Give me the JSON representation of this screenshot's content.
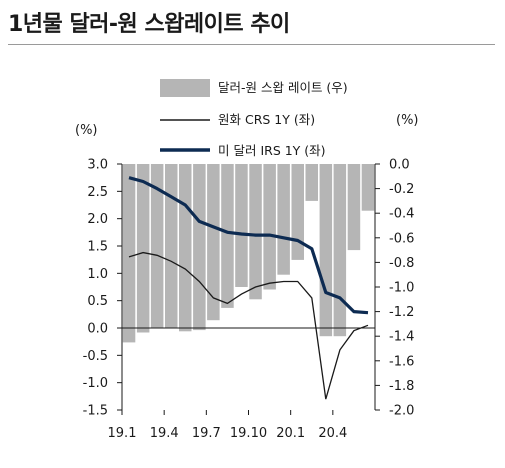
{
  "title": "1년물 달러-원 스왑레이트 추이",
  "chart_data": {
    "type": "bar+line",
    "x_tick_labels": [
      "19.1",
      "19.4",
      "19.7",
      "19.10",
      "20.1",
      "20.4"
    ],
    "left_axis": {
      "unit": "(%)",
      "ylim": [
        -1.5,
        3.0
      ],
      "ticks": [
        "3.0",
        "2.5",
        "2.0",
        "1.5",
        "1.0",
        "0.5",
        "0.0",
        "-0.5",
        "-1.0",
        "-1.5"
      ]
    },
    "right_axis": {
      "unit": "(%)",
      "ylim": [
        -2.0,
        0.0
      ],
      "ticks": [
        "0.0",
        "-0.2",
        "-0.4",
        "-0.6",
        "-0.8",
        "-1.0",
        "-1.2",
        "-1.4",
        "-1.6",
        "-1.8",
        "-2.0"
      ]
    },
    "legend": {
      "bar_label": "달러-원 스왑 레이트 (우)",
      "crs_label": "원화 CRS 1Y (좌)",
      "irs_label": "미 달러 IRS 1Y (좌)"
    },
    "colors": {
      "bars": "#b5b5b5",
      "crs": "#1a1a1a",
      "irs": "#0d2b52"
    },
    "months": [
      "2019-01",
      "2019-02",
      "2019-03",
      "2019-04",
      "2019-05",
      "2019-06",
      "2019-07",
      "2019-08",
      "2019-09",
      "2019-10",
      "2019-11",
      "2019-12",
      "2020-01",
      "2020-02",
      "2020-03",
      "2020-04",
      "2020-05",
      "2020-06"
    ],
    "series": [
      {
        "name": "달러-원 스왑 레이트 (우)",
        "axis": "right",
        "kind": "bar",
        "values": [
          -1.45,
          -1.37,
          -1.33,
          -1.33,
          -1.36,
          -1.35,
          -1.27,
          -1.17,
          -1.0,
          -1.1,
          -1.02,
          -0.9,
          -0.78,
          -0.3,
          -1.4,
          -1.4,
          -0.7,
          -0.38
        ]
      },
      {
        "name": "원화 CRS 1Y (좌)",
        "axis": "left",
        "kind": "line",
        "values": [
          1.3,
          1.38,
          1.33,
          1.22,
          1.08,
          0.85,
          0.55,
          0.45,
          0.62,
          0.75,
          0.82,
          0.85,
          0.85,
          0.55,
          -1.3,
          -0.4,
          -0.05,
          0.05
        ]
      },
      {
        "name": "미 달러 IRS 1Y (좌)",
        "axis": "left",
        "kind": "line",
        "values": [
          2.75,
          2.68,
          2.55,
          2.4,
          2.25,
          1.95,
          1.85,
          1.75,
          1.72,
          1.7,
          1.7,
          1.65,
          1.6,
          1.45,
          0.65,
          0.55,
          0.3,
          0.28
        ]
      }
    ]
  }
}
